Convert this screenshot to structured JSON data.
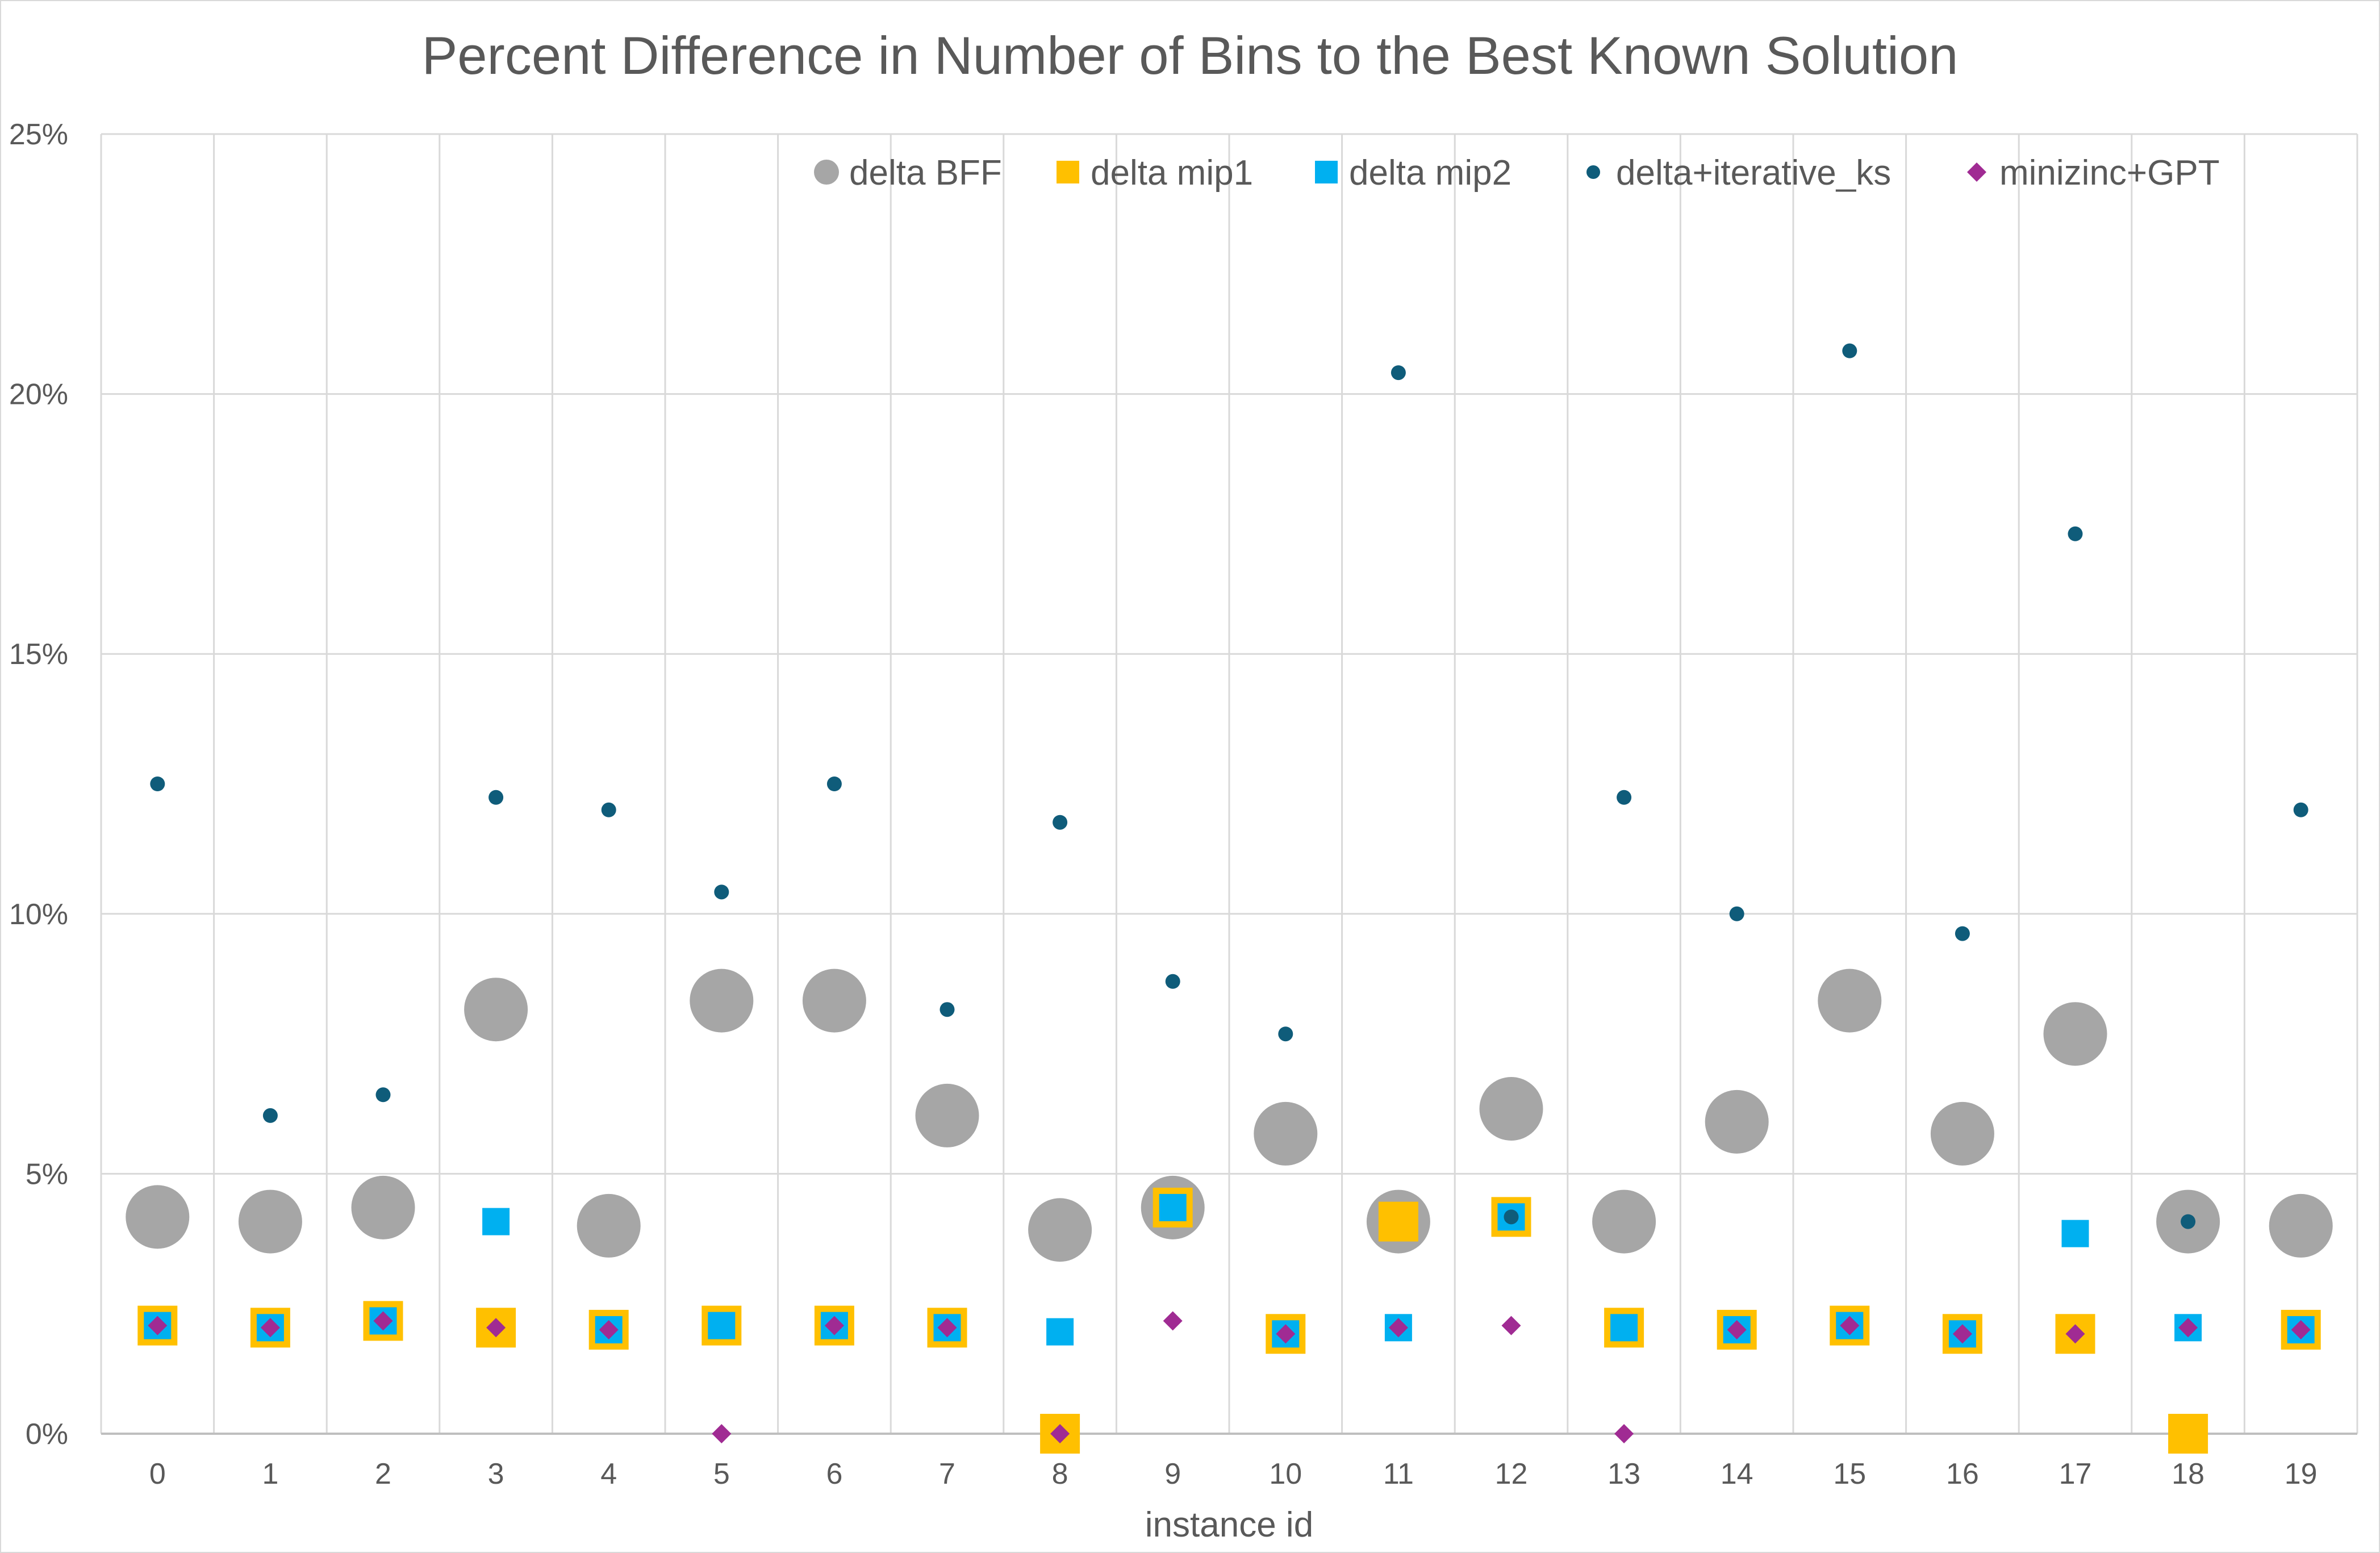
{
  "chart_data": {
    "type": "scatter",
    "title": "Percent Difference in Number of Bins to the Best Known Solution",
    "xlabel": "instance id",
    "ylabel": "",
    "ylim": [
      0,
      0.25
    ],
    "y_ticks": [
      "0%",
      "5%",
      "10%",
      "15%",
      "20%",
      "25%"
    ],
    "categories": [
      "0",
      "1",
      "2",
      "3",
      "4",
      "5",
      "6",
      "7",
      "8",
      "9",
      "10",
      "11",
      "12",
      "13",
      "14",
      "15",
      "16",
      "17",
      "18",
      "19"
    ],
    "grid": true,
    "legend_position": "top-right",
    "series": [
      {
        "name": "delta BFF",
        "marker": "circle-large",
        "color": "#a6a6a6",
        "values": [
          0.0417,
          0.0408,
          0.0435,
          0.0816,
          0.04,
          0.0833,
          0.0833,
          0.0612,
          0.0392,
          0.0435,
          0.0577,
          0.0408,
          0.0625,
          0.0408,
          0.06,
          0.0833,
          0.0577,
          0.0769,
          0.0408,
          0.04
        ]
      },
      {
        "name": "delta mip1",
        "marker": "square-large",
        "color": "#ffc000",
        "values": [
          0.0208,
          0.0204,
          0.0217,
          0.0204,
          0.02,
          0.0208,
          0.0208,
          0.0204,
          0.0,
          0.0435,
          0.0192,
          0.0408,
          0.0417,
          0.0204,
          0.02,
          0.0208,
          0.0192,
          0.0192,
          0.0,
          0.02
        ]
      },
      {
        "name": "delta mip2",
        "marker": "square",
        "color": "#00b0f0",
        "values": [
          0.0208,
          0.0204,
          0.0217,
          0.0408,
          0.02,
          0.0208,
          0.0208,
          0.0204,
          0.0196,
          0.0435,
          0.0192,
          0.0204,
          0.0417,
          0.0204,
          0.02,
          0.0208,
          0.0192,
          0.0385,
          0.0204,
          0.02
        ]
      },
      {
        "name": "delta+iterative_ks",
        "marker": "dot",
        "color": "#0f5c7a",
        "values": [
          0.125,
          0.0612,
          0.0652,
          0.1224,
          0.12,
          0.1042,
          0.125,
          0.0816,
          0.1176,
          0.087,
          0.0769,
          0.2041,
          0.0417,
          0.1224,
          0.1,
          0.2083,
          0.0962,
          0.1731,
          0.0408,
          0.12
        ]
      },
      {
        "name": "minizinc+GPT",
        "marker": "diamond",
        "color": "#a02b93",
        "values": [
          0.0208,
          0.0204,
          0.0217,
          0.0204,
          0.02,
          0.0,
          0.0208,
          0.0204,
          0.0,
          0.0217,
          0.0192,
          0.0204,
          0.0208,
          0.0,
          0.02,
          0.0208,
          0.0192,
          0.0192,
          0.0204,
          0.02
        ]
      }
    ]
  }
}
